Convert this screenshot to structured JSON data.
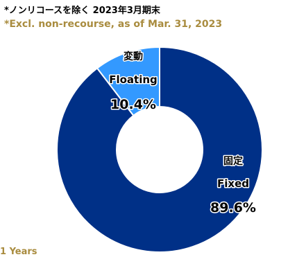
{
  "notes": {
    "jp": "*ノンリコースを除く 2023年3月期末",
    "en": "*Excl. non-recourse, as of Mar. 31, 2023"
  },
  "footer_text": "1 Years",
  "chart_data": {
    "type": "pie",
    "donut": true,
    "categories": [
      "Fixed",
      "Floating"
    ],
    "values": [
      89.6,
      10.4
    ],
    "slices": [
      {
        "label_jp": "固定",
        "label_en": "Fixed",
        "value": 89.6,
        "display": "89.6%",
        "color": "#003087"
      },
      {
        "label_jp": "変動",
        "label_en": "Floating",
        "value": 10.4,
        "display": "10.4%",
        "color": "#3399ff"
      }
    ],
    "start_angle_deg": 0,
    "direction": "clockwise"
  }
}
